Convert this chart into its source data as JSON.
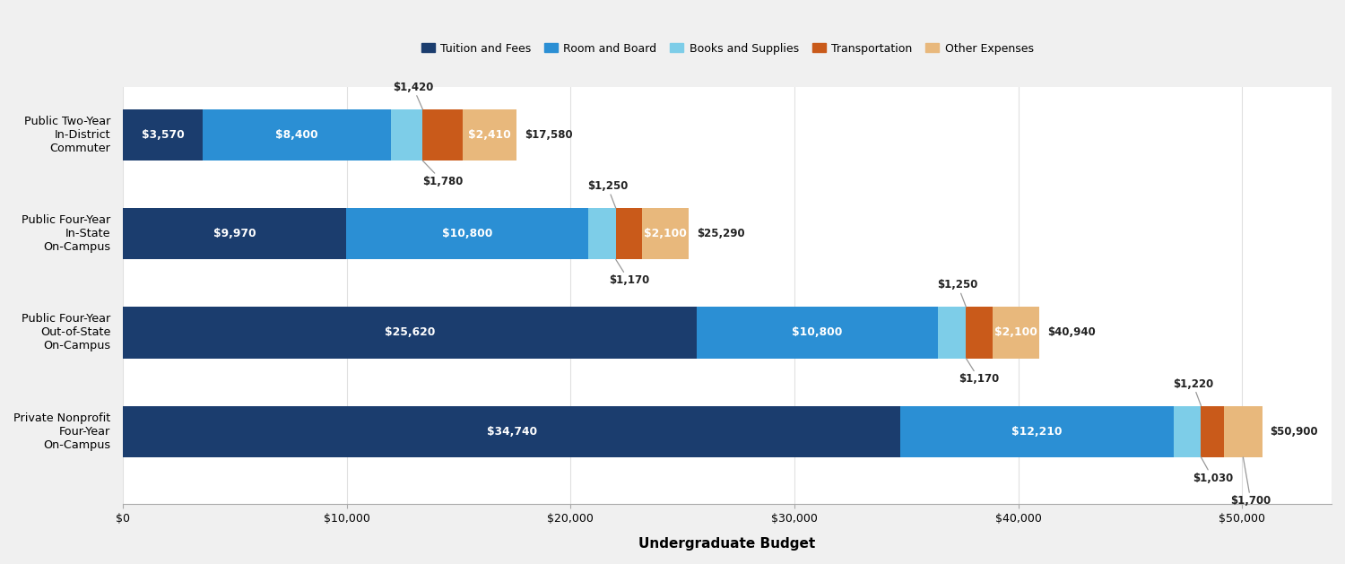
{
  "categories": [
    "Public Two-Year\nIn-District\nCommuter",
    "Public Four-Year\nIn-State\nOn-Campus",
    "Public Four-Year\nOut-of-State\nOn-Campus",
    "Private Nonprofit\nFour-Year\nOn-Campus"
  ],
  "segments": {
    "Tuition and Fees": [
      3570,
      9970,
      25620,
      34740
    ],
    "Room and Board": [
      8400,
      10800,
      10800,
      12210
    ],
    "Books and Supplies": [
      1420,
      1250,
      1250,
      1220
    ],
    "Transportation": [
      1780,
      1170,
      1170,
      1030
    ],
    "Other Expenses": [
      2410,
      2100,
      2100,
      1700
    ]
  },
  "totals": [
    17580,
    25290,
    40940,
    50900
  ],
  "colors": {
    "Tuition and Fees": "#1b3d6e",
    "Room and Board": "#2b8fd4",
    "Books and Supplies": "#7dcde8",
    "Transportation": "#c95a1a",
    "Other Expenses": "#e8b87c"
  },
  "bar_height": 0.52,
  "background_color": "#f0f0f0",
  "plot_background": "#ffffff",
  "xlim": [
    0,
    54000
  ],
  "xlabel": "Undergraduate Budget",
  "legend_fontsize": 9,
  "label_fontsize": 8.8,
  "annotation_fontsize": 8.5
}
